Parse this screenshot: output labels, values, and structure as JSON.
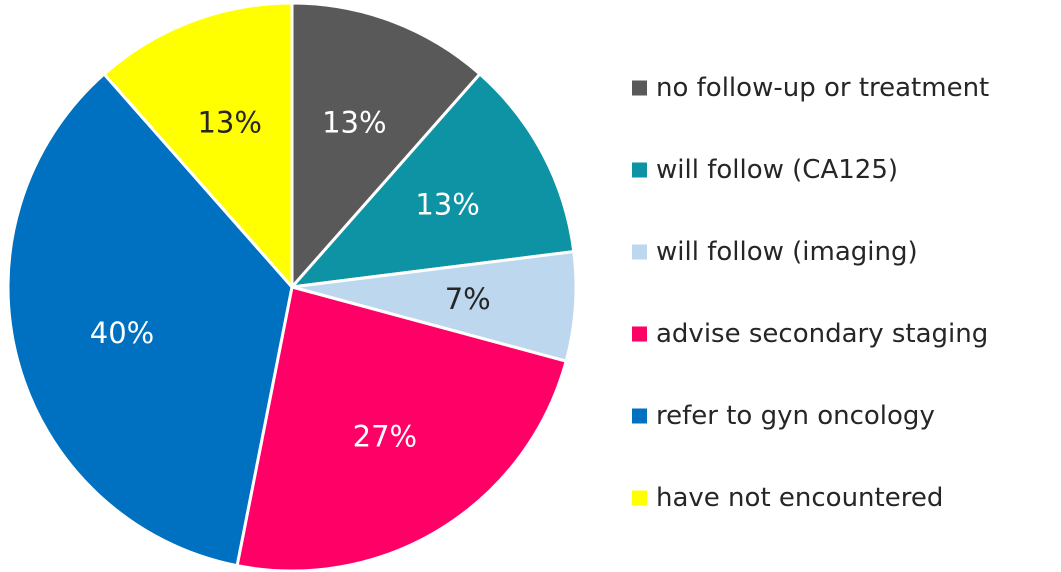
{
  "chart_data": {
    "type": "pie",
    "legend_position": "right",
    "slices": [
      {
        "name": "no follow-up or treatment",
        "value": 13,
        "label": "13%",
        "color": "#595959",
        "label_color": "#ffffff"
      },
      {
        "name": "will follow (CA125)",
        "value": 13,
        "label": "13%",
        "color": "#0e93a4",
        "label_color": "#ffffff"
      },
      {
        "name": "will follow (imaging)",
        "value": 7,
        "label": "7%",
        "color": "#bdd7ee",
        "label_color": "#262626"
      },
      {
        "name": "advise secondary staging",
        "value": 27,
        "label": "27%",
        "color": "#ff0066",
        "label_color": "#ffffff"
      },
      {
        "name": "refer to gyn oncology",
        "value": 40,
        "label": "40%",
        "color": "#0070c0",
        "label_color": "#ffffff"
      },
      {
        "name": "have not encountered",
        "value": 13,
        "label": "13%",
        "color": "#ffff00",
        "label_color": "#262626"
      }
    ]
  }
}
